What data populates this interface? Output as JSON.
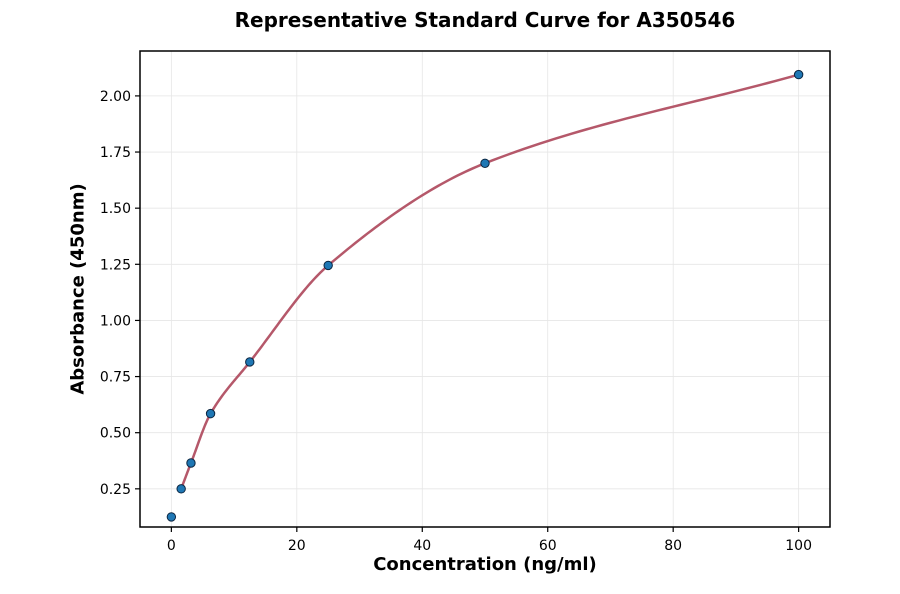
{
  "chart_data": {
    "type": "scatter",
    "title": "Representative Standard Curve for A350546",
    "xlabel": "Concentration (ng/ml)",
    "ylabel": "Absorbance (450nm)",
    "xlim": [
      -5,
      105
    ],
    "ylim": [
      0.08,
      2.2
    ],
    "xticks": [
      0,
      20,
      40,
      60,
      80,
      100
    ],
    "yticks": [
      0.25,
      0.5,
      0.75,
      1.0,
      1.25,
      1.5,
      1.75,
      2.0
    ],
    "grid": true,
    "series": [
      {
        "x": [
          0,
          1.5625,
          3.125,
          6.25,
          12.5,
          25,
          50,
          100
        ],
        "y": [
          0.125,
          0.25,
          0.365,
          0.585,
          0.815,
          1.245,
          1.7,
          2.095
        ]
      }
    ],
    "fit_curve": {
      "x_range": [
        1.5625,
        100
      ],
      "color": "#b5586a"
    },
    "colors": {
      "points": "#1f77b4",
      "point_edge": "#0b2540",
      "fit": "#b5586a"
    }
  }
}
